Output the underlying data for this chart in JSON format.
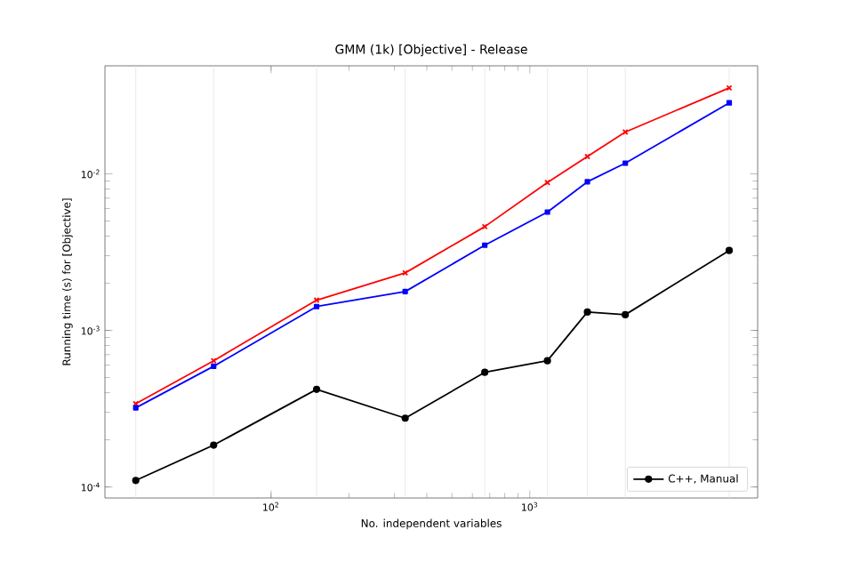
{
  "chart_data": {
    "type": "line",
    "title": "GMM (1k) [Objective] - Release",
    "xlabel": "No. independent variables",
    "ylabel": "Running time (s) for [Objective]",
    "x": [
      30,
      60,
      150,
      330,
      670,
      1170,
      1670,
      2340,
      5900
    ],
    "series": [
      {
        "color": "#ff0000",
        "marker": "cross",
        "values": [
          0.00034,
          0.00064,
          0.00156,
          0.00233,
          0.0046,
          0.0088,
          0.0129,
          0.0185,
          0.0354
        ]
      },
      {
        "color": "#0000ff",
        "marker": "square",
        "values": [
          0.00032,
          0.00059,
          0.00142,
          0.00177,
          0.0035,
          0.0057,
          0.0089,
          0.0117,
          0.0284
        ]
      },
      {
        "name": "C++, Manual",
        "color": "#000000",
        "marker": "circle",
        "values": [
          0.00011,
          0.000185,
          0.00042,
          0.000275,
          0.00054,
          0.00064,
          0.00131,
          0.00126,
          0.00324
        ]
      }
    ],
    "log": "xy",
    "grid": "x",
    "legend": "bottom right",
    "line_style": "solid",
    "xlim": [
      22.8,
      7600
    ],
    "ylim": [
      8.5e-05,
      0.049
    ],
    "xticks": [
      {
        "value": 100,
        "label": "10$^{2}$"
      },
      {
        "value": 1000,
        "label": "10$^{3}$"
      }
    ],
    "yticks": [
      {
        "value": 0.0001,
        "label": "10$^{-4}$"
      },
      {
        "value": 0.001,
        "label": "10$^{-3}$"
      },
      {
        "value": 0.01,
        "label": "10$^{-2}$"
      }
    ]
  }
}
